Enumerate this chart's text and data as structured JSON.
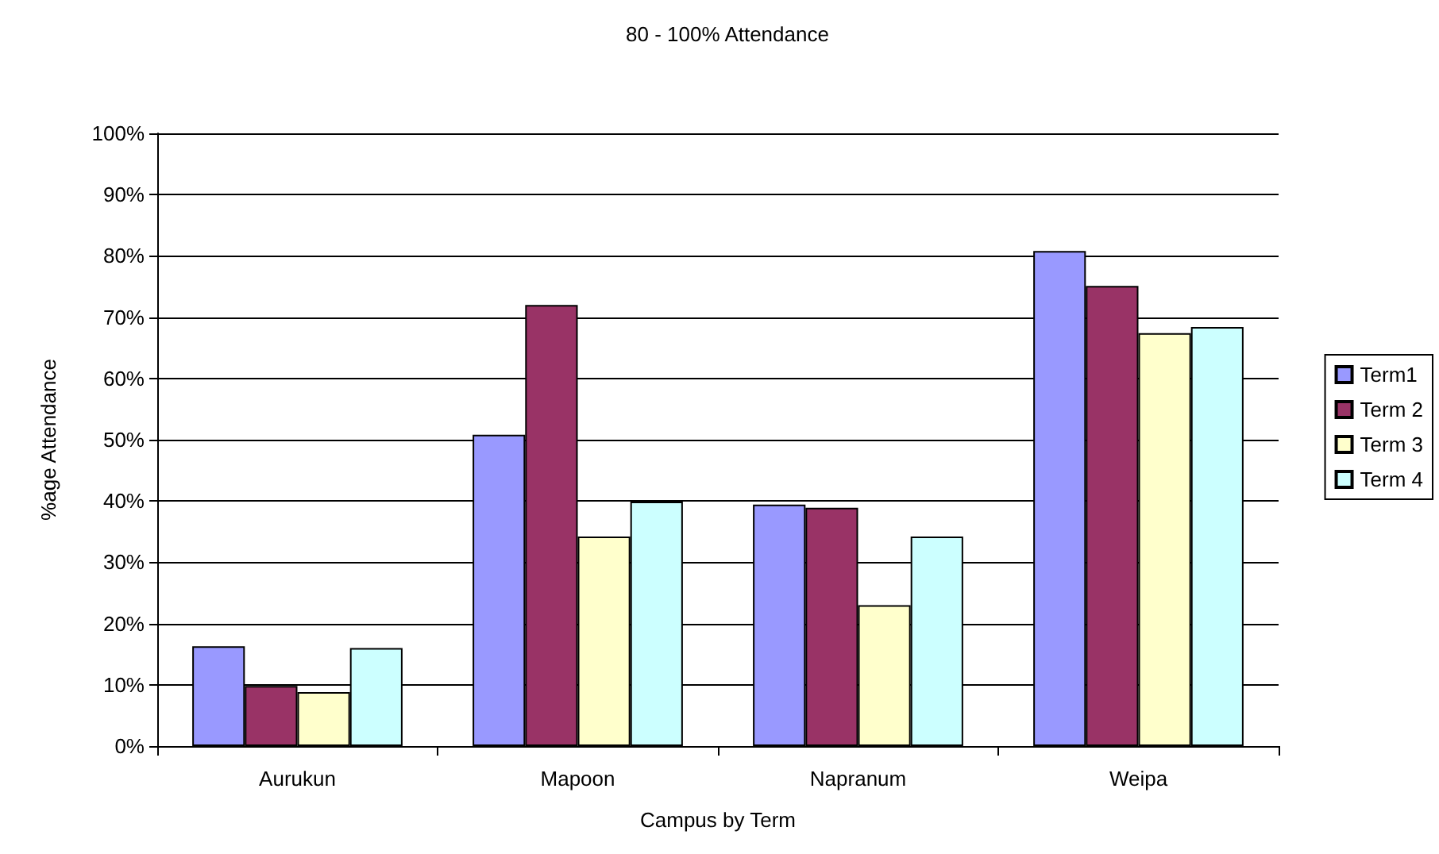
{
  "chart_data": {
    "type": "bar",
    "title": "80 - 100% Attendance",
    "xlabel": "Campus by Term",
    "ylabel": "%age Attendance",
    "categories": [
      "Aurukun",
      "Mapoon",
      "Napranum",
      "Weipa"
    ],
    "series": [
      {
        "name": "Term1",
        "color": "#9999ff",
        "values": [
          16.3,
          50.8,
          39.4,
          80.8
        ]
      },
      {
        "name": "Term 2",
        "color": "#993366",
        "values": [
          9.8,
          72,
          38.9,
          75.1
        ]
      },
      {
        "name": "Term 3",
        "color": "#ffffcc",
        "values": [
          8.8,
          34.2,
          23,
          67.4
        ]
      },
      {
        "name": "Term 4",
        "color": "#ccffff",
        "values": [
          16,
          39.9,
          34.2,
          68.4
        ]
      }
    ],
    "ylim": [
      0,
      100
    ],
    "yticks": [
      {
        "value": 0,
        "label": "0%"
      },
      {
        "value": 10,
        "label": "10%"
      },
      {
        "value": 20,
        "label": "20%"
      },
      {
        "value": 30,
        "label": "30%"
      },
      {
        "value": 40,
        "label": "40%"
      },
      {
        "value": 50,
        "label": "50%"
      },
      {
        "value": 60,
        "label": "60%"
      },
      {
        "value": 70,
        "label": "70%"
      },
      {
        "value": 80,
        "label": "80%"
      },
      {
        "value": 90,
        "label": "90%"
      },
      {
        "value": 100,
        "label": "100%"
      }
    ],
    "grid": "y",
    "legend": "right"
  }
}
